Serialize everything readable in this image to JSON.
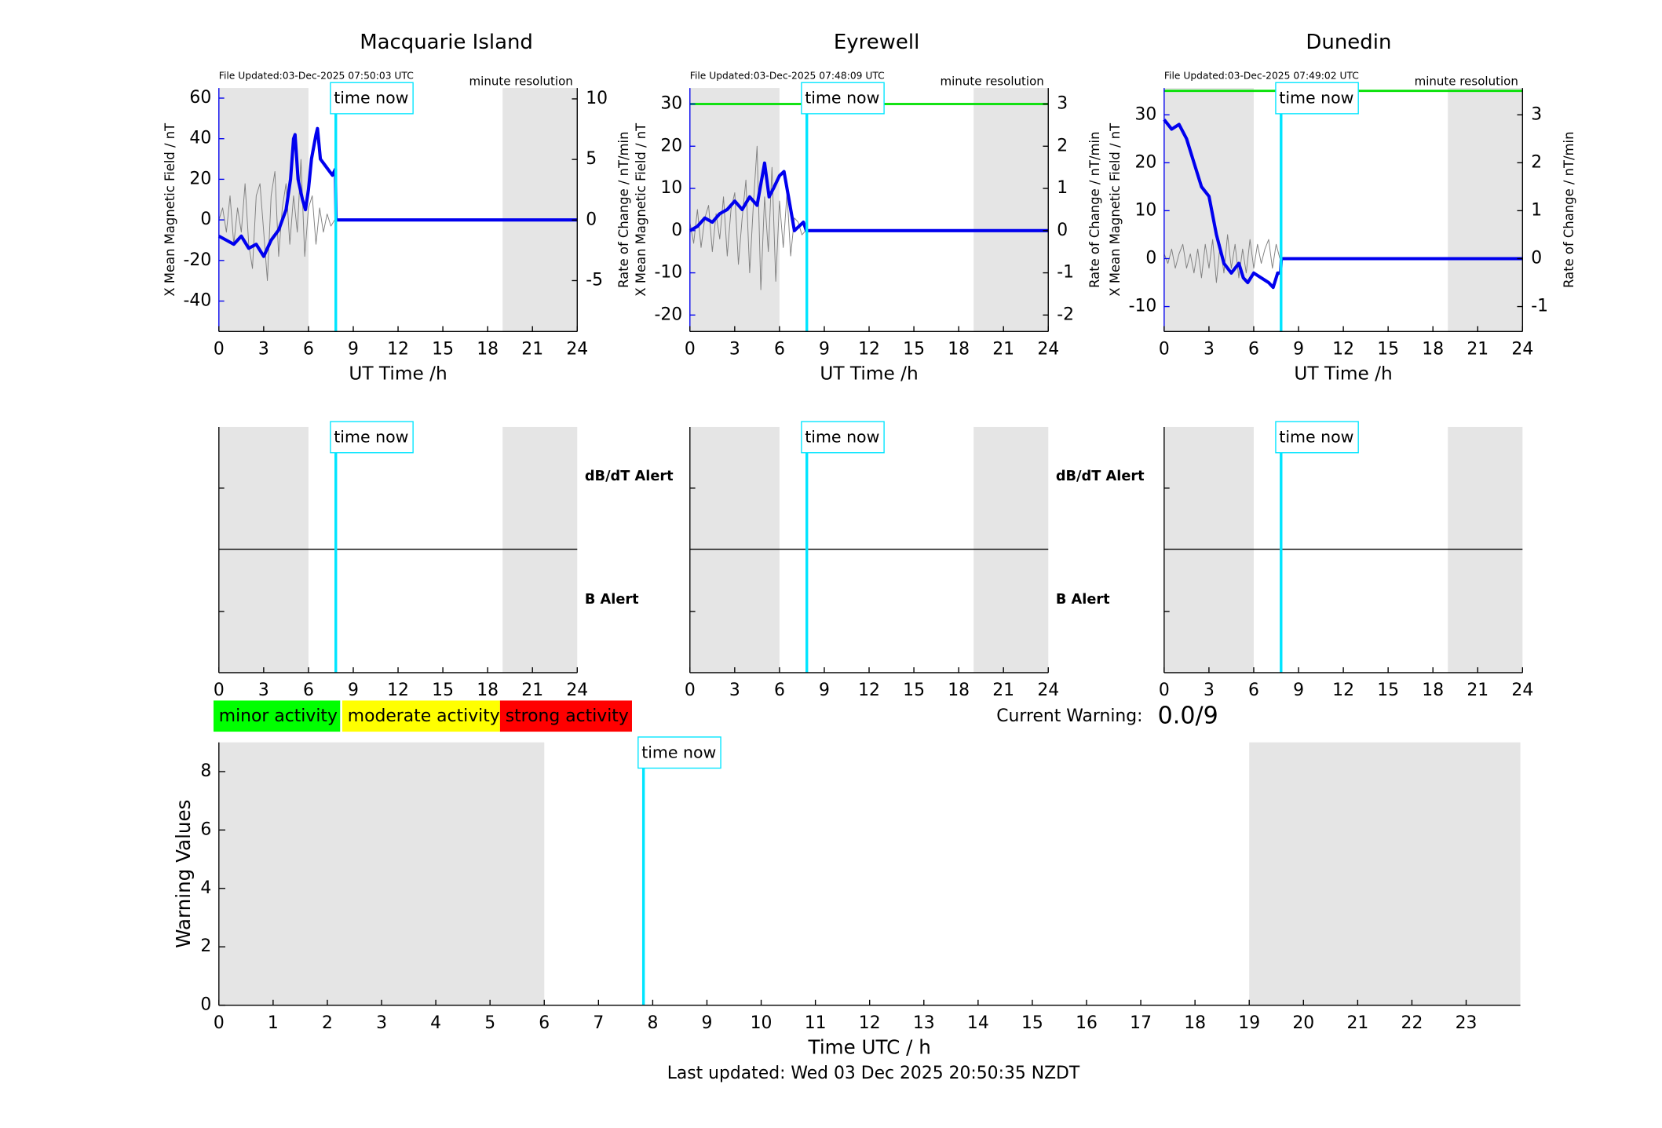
{
  "chart_data": [
    {
      "type": "magnetometer",
      "title": "Macquarie Island",
      "file_updated": "File Updated:03-Dec-2025 07:50:03 UTC",
      "resolution": "minute resolution",
      "xlabel": "UT Time /h",
      "ylabel": "X Mean Magnetic Field / nT",
      "y2label": "Rate of Change / nT/min",
      "xlim": [
        0,
        24
      ],
      "xticks": [
        0,
        3,
        6,
        9,
        12,
        15,
        18,
        21,
        24
      ],
      "ylim": [
        -55,
        65
      ],
      "yticks": [
        -40,
        -20,
        0,
        20,
        40,
        60
      ],
      "y2lim": [
        -9.2,
        10.9
      ],
      "y2ticks": [
        -5,
        0,
        5,
        10
      ],
      "shaded": [
        [
          0,
          6
        ],
        [
          19,
          24
        ]
      ],
      "time_now": 7.83,
      "time_now_label": "time now",
      "field": {
        "color": "#0000ee",
        "x": [
          0,
          0.5,
          1,
          1.5,
          2,
          2.5,
          3,
          3.5,
          4,
          4.5,
          4.8,
          5,
          5.1,
          5.3,
          5.6,
          5.8,
          6,
          6.2,
          6.5,
          6.6,
          6.8,
          7,
          7.3,
          7.6,
          7.8,
          7.85,
          24
        ],
        "values": [
          -8,
          -10,
          -12,
          -8,
          -14,
          -12,
          -18,
          -10,
          -5,
          5,
          20,
          40,
          42,
          20,
          10,
          5,
          15,
          30,
          42,
          45,
          30,
          28,
          25,
          22,
          25,
          0,
          0
        ]
      },
      "rate": {
        "color": "#808080",
        "axis": "y2",
        "x": [
          0,
          0.25,
          0.5,
          0.75,
          1,
          1.25,
          1.5,
          1.75,
          2,
          2.25,
          2.5,
          2.75,
          3,
          3.25,
          3.5,
          3.75,
          4,
          4.25,
          4.5,
          4.75,
          5,
          5.25,
          5.5,
          5.75,
          6,
          6.25,
          6.5,
          6.75,
          7,
          7.25,
          7.5,
          7.75
        ],
        "values": [
          0,
          1,
          -1,
          2,
          -2,
          1,
          -1,
          3,
          -2,
          -4,
          2,
          3,
          -1,
          -5,
          2,
          4,
          -3,
          1,
          3,
          -2,
          2,
          -1,
          5,
          -3,
          1,
          2,
          -2,
          1,
          -1,
          0.5,
          -0.5,
          0
        ]
      }
    },
    {
      "type": "magnetometer",
      "title": "Eyrewell",
      "file_updated": "File Updated:03-Dec-2025 07:48:09 UTC",
      "resolution": "minute resolution",
      "xlabel": "UT Time /h",
      "ylabel": "X Mean Magnetic Field / nT",
      "y2label": "Rate of Change / nT/min",
      "xlim": [
        0,
        24
      ],
      "xticks": [
        0,
        3,
        6,
        9,
        12,
        15,
        18,
        21,
        24
      ],
      "ylim": [
        -23.9,
        33.8
      ],
      "yticks": [
        -20,
        -10,
        0,
        10,
        20,
        30
      ],
      "y2lim": [
        -2.39,
        3.38
      ],
      "y2ticks": [
        -2,
        -1,
        0,
        1,
        2,
        3
      ],
      "shaded": [
        [
          0,
          6
        ],
        [
          19,
          24
        ]
      ],
      "time_now": 7.83,
      "time_now_label": "time now",
      "threshold": 30,
      "threshold_color": "#00e000",
      "field": {
        "color": "#0000ee",
        "x": [
          0,
          0.5,
          1,
          1.5,
          2,
          2.5,
          3,
          3.5,
          4,
          4.5,
          5,
          5.3,
          5.6,
          6,
          6.3,
          6.6,
          7,
          7.3,
          7.6,
          7.8,
          24
        ],
        "values": [
          0,
          1,
          3,
          2,
          4,
          5,
          7,
          5,
          8,
          6,
          16,
          8,
          10,
          13,
          14,
          8,
          0,
          1,
          2,
          0,
          0
        ]
      },
      "rate": {
        "color": "#808080",
        "axis": "y2",
        "x": [
          0,
          0.25,
          0.5,
          0.75,
          1,
          1.25,
          1.5,
          1.75,
          2,
          2.25,
          2.5,
          2.75,
          3,
          3.25,
          3.5,
          3.75,
          4,
          4.25,
          4.5,
          4.75,
          5,
          5.25,
          5.5,
          5.75,
          6,
          6.25,
          6.5,
          6.75,
          7,
          7.25,
          7.5,
          7.75
        ],
        "values": [
          0.2,
          -0.3,
          0.5,
          -0.4,
          0.3,
          0.6,
          -0.5,
          0.4,
          -0.2,
          0.8,
          -0.6,
          0.5,
          0.9,
          -0.8,
          0.3,
          1.2,
          -1.0,
          0.6,
          2.0,
          -1.4,
          0.8,
          -0.5,
          1.5,
          -1.2,
          0.7,
          -0.4,
          0.9,
          -0.6,
          0.3,
          0.2,
          -0.1,
          0
        ]
      }
    },
    {
      "type": "magnetometer",
      "title": "Dunedin",
      "file_updated": "File Updated:03-Dec-2025 07:49:02 UTC",
      "resolution": "minute resolution",
      "xlabel": "UT Time /h",
      "ylabel": "X Mean Magnetic Field / nT",
      "y2label": "Rate of Change / nT/min",
      "xlim": [
        0,
        24
      ],
      "xticks": [
        0,
        3,
        6,
        9,
        12,
        15,
        18,
        21,
        24
      ],
      "ylim": [
        -15.2,
        35.6
      ],
      "yticks": [
        -10,
        0,
        10,
        20,
        30
      ],
      "y2lim": [
        -1.52,
        3.56
      ],
      "y2ticks": [
        -1,
        0,
        1,
        2,
        3
      ],
      "shaded": [
        [
          0,
          6
        ],
        [
          19,
          24
        ]
      ],
      "time_now": 7.83,
      "time_now_label": "time now",
      "threshold": 35,
      "threshold_color": "#00e000",
      "field": {
        "color": "#0000ee",
        "x": [
          0,
          0.5,
          1,
          1.5,
          2,
          2.5,
          3,
          3.5,
          4,
          4.5,
          5,
          5.3,
          5.6,
          6,
          6.5,
          7,
          7.3,
          7.6,
          7.8,
          7.85,
          24
        ],
        "values": [
          29,
          27,
          28,
          25,
          20,
          15,
          13,
          5,
          -1,
          -3,
          -1,
          -4,
          -5,
          -3,
          -4,
          -5,
          -6,
          -3,
          -3,
          0,
          0
        ]
      },
      "rate": {
        "color": "#808080",
        "axis": "y2",
        "x": [
          0,
          0.25,
          0.5,
          0.75,
          1,
          1.25,
          1.5,
          1.75,
          2,
          2.25,
          2.5,
          2.75,
          3,
          3.25,
          3.5,
          3.75,
          4,
          4.25,
          4.5,
          4.75,
          5,
          5.25,
          5.5,
          5.75,
          6,
          6.25,
          6.5,
          6.75,
          7,
          7.25,
          7.5,
          7.75
        ],
        "values": [
          0.1,
          -0.1,
          0.2,
          -0.2,
          0.1,
          0.3,
          -0.2,
          0.1,
          -0.3,
          0.2,
          -0.4,
          0.3,
          -0.2,
          0.4,
          -0.5,
          0.3,
          -0.3,
          0.5,
          -0.2,
          0.3,
          -0.4,
          0.2,
          -0.3,
          0.4,
          -0.2,
          0.3,
          -0.1,
          0.2,
          0.4,
          -0.2,
          0.3,
          0
        ]
      }
    },
    {
      "type": "alert",
      "xlim": [
        0,
        24
      ],
      "xticks": [
        0,
        3,
        6,
        9,
        12,
        15,
        18,
        21,
        24
      ],
      "shaded": [
        [
          0,
          6
        ],
        [
          19,
          24
        ]
      ],
      "time_now": 7.83,
      "time_now_label": "time now",
      "labels": [
        {
          "text": "dB/dT Alert",
          "color": "#000000"
        },
        {
          "text": "B Alert",
          "color": "#0000ee"
        }
      ]
    },
    {
      "type": "alert",
      "xlim": [
        0,
        24
      ],
      "xticks": [
        0,
        3,
        6,
        9,
        12,
        15,
        18,
        21,
        24
      ],
      "shaded": [
        [
          0,
          6
        ],
        [
          19,
          24
        ]
      ],
      "time_now": 7.83,
      "time_now_label": "time now",
      "labels": [
        {
          "text": "dB/dT Alert",
          "color": "#000000"
        },
        {
          "text": "B Alert",
          "color": "#0000ee"
        }
      ]
    },
    {
      "type": "alert",
      "xlim": [
        0,
        24
      ],
      "xticks": [
        0,
        3,
        6,
        9,
        12,
        15,
        18,
        21,
        24
      ],
      "shaded": [
        [
          0,
          6
        ],
        [
          19,
          24
        ]
      ],
      "time_now": 7.83,
      "time_now_label": "time now"
    },
    {
      "type": "warning",
      "xlabel": "Time UTC / h",
      "ylabel": "Warning Values",
      "xlim": [
        0,
        24
      ],
      "xticks": [
        0,
        1,
        2,
        3,
        4,
        5,
        6,
        7,
        8,
        9,
        10,
        11,
        12,
        13,
        14,
        15,
        16,
        17,
        18,
        19,
        20,
        21,
        22,
        23
      ],
      "ylim": [
        0,
        9
      ],
      "yticks": [
        0,
        2,
        4,
        6,
        8
      ],
      "shaded": [
        [
          0,
          6
        ],
        [
          19,
          24
        ]
      ],
      "time_now": 7.83,
      "time_now_label": "time now"
    }
  ],
  "legend": [
    {
      "text": "minor activity",
      "color": "#00ff00"
    },
    {
      "text": "moderate activity",
      "color": "#ffff00"
    },
    {
      "text": "strong activity",
      "color": "#ff0000"
    }
  ],
  "current_warning": {
    "label": "Current Warning:",
    "value": "0.0/9"
  },
  "last_updated": "Last updated: Wed 03 Dec 2025 20:50:35 NZDT"
}
